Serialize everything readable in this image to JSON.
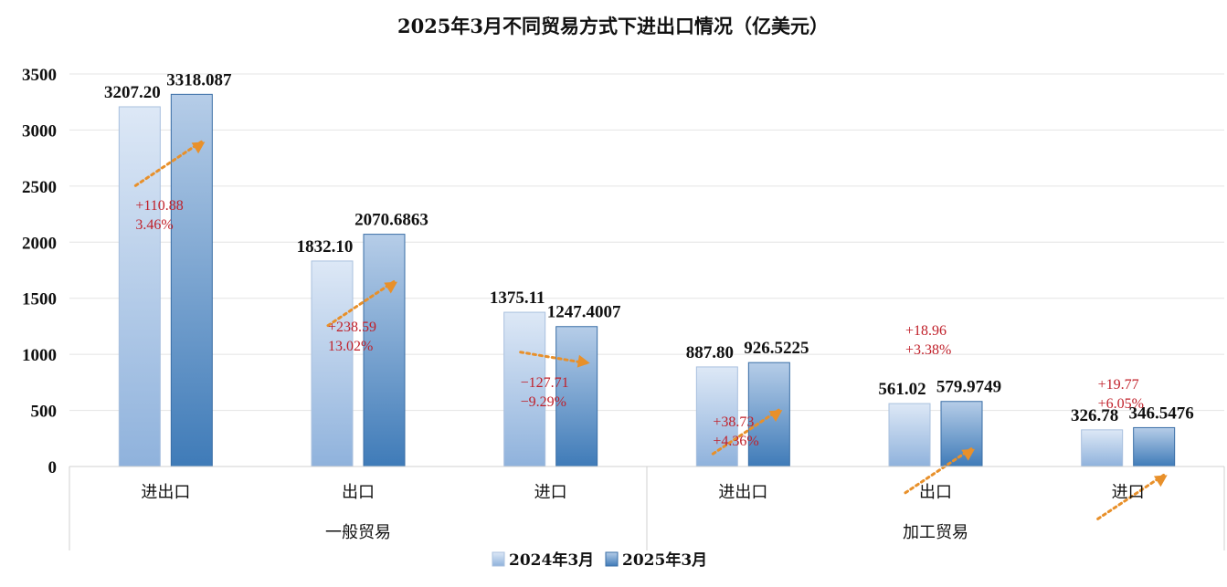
{
  "chart_data": {
    "type": "bar",
    "title": "2025年3月不同贸易方式下进出口情况（亿美元）",
    "ylim": [
      0,
      3500
    ],
    "yticks": [
      0,
      500,
      1000,
      1500,
      2000,
      2500,
      3000,
      3500
    ],
    "grid": true,
    "legend_position": "bottom-center",
    "categories": [
      "进出口",
      "出口",
      "进口",
      "进出口",
      "出口",
      "进口"
    ],
    "groups": [
      {
        "label": "一般贸易",
        "categories": [
          0,
          1,
          2
        ]
      },
      {
        "label": "加工贸易",
        "categories": [
          3,
          4,
          5
        ]
      }
    ],
    "series": [
      {
        "name": "2024年3月",
        "values": [
          3207.2,
          1832.1,
          1375.11,
          887.8,
          561.02,
          326.78
        ],
        "labels": [
          "3207.20",
          "1832.10",
          "1375.11",
          "887.80",
          "561.02",
          "326.78"
        ]
      },
      {
        "name": "2025年3月",
        "values": [
          3318.087,
          2070.6863,
          1247.4007,
          926.5225,
          579.9749,
          346.5476
        ],
        "labels": [
          "3318.087",
          "2070.6863",
          "1247.4007",
          "926.5225",
          "579.9749",
          "346.5476"
        ]
      }
    ],
    "annotations": [
      {
        "change": "+110.88",
        "percent": "3.46%",
        "direction": "up"
      },
      {
        "change": "+238.59",
        "percent": "13.02%",
        "direction": "up"
      },
      {
        "change": "−127.71",
        "percent": "−9.29%",
        "direction": "down"
      },
      {
        "change": "+38.73",
        "percent": "+4.36%",
        "direction": "up"
      },
      {
        "change": "+18.96",
        "percent": "+3.38%",
        "direction": "up"
      },
      {
        "change": "+19.77",
        "percent": "+6.05%",
        "direction": "up"
      }
    ]
  },
  "colors": {
    "series_2024_top": "#dde8f6",
    "series_2024_bottom": "#8fb2dc",
    "series_2025_top": "#b6cde8",
    "series_2025_bottom": "#3f7bb8",
    "arrow": "#e8902a",
    "annotation": "#c0202a",
    "grid": "#e4e4e4"
  }
}
